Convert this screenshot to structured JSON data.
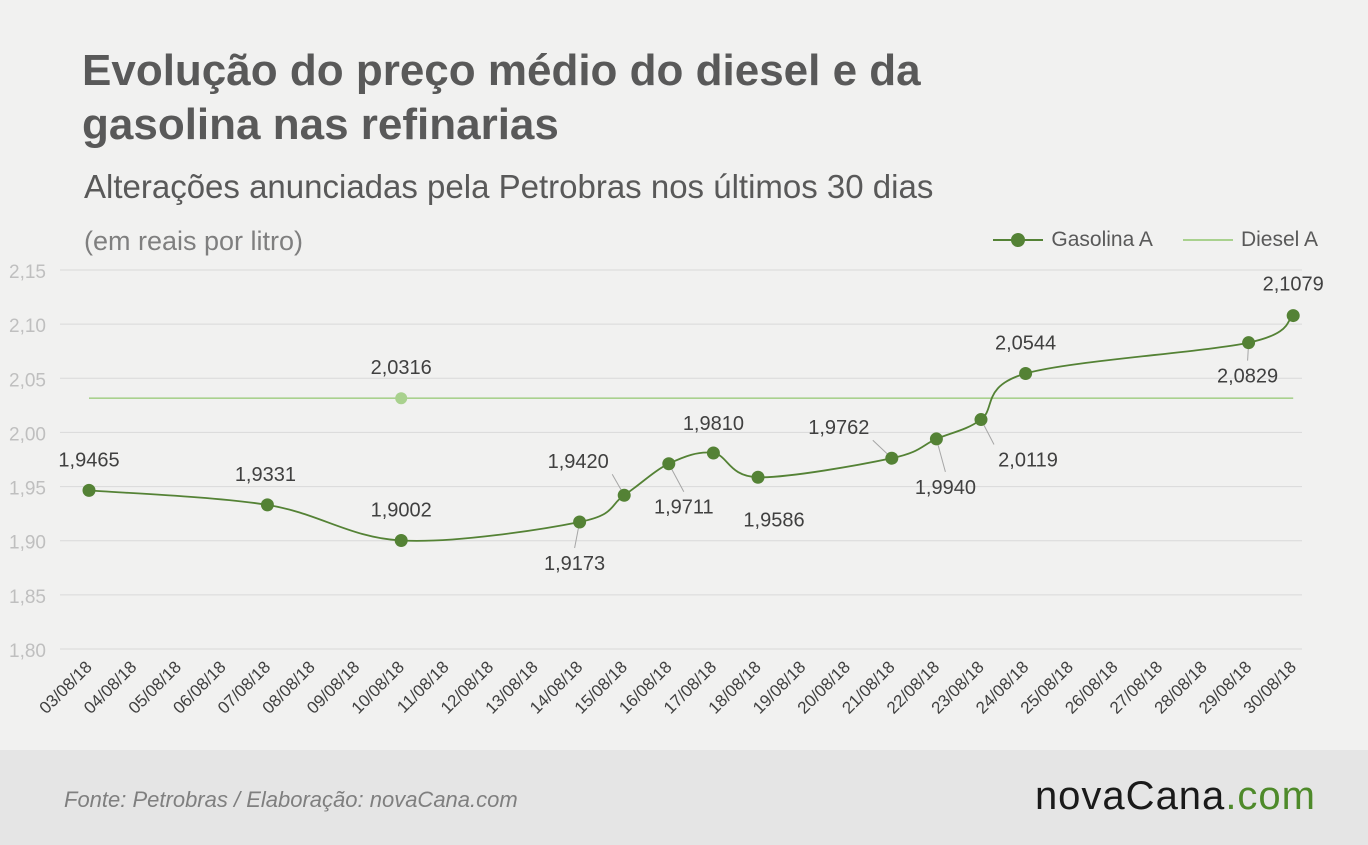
{
  "header": {
    "title": "Evolução do preço médio do diesel e da gasolina nas refinarias",
    "subtitle": "Alterações anunciadas pela Petrobras nos últimos 30 dias",
    "unit": "(em reais por litro)"
  },
  "legend": {
    "gasolina": "Gasolina A",
    "diesel": "Diesel A"
  },
  "footer": {
    "source": "Fonte:  Petrobras  / Elaboração:  novaCana.com",
    "brand_main": "novaCana",
    "brand_suffix": ".com"
  },
  "colors": {
    "gasolina": "#548235",
    "diesel": "#a9d18e",
    "background": "#f1f1f0",
    "footer_bg": "#e5e5e5"
  },
  "chart_data": {
    "type": "line",
    "title": "Evolução do preço médio do diesel e da gasolina nas refinarias",
    "subtitle": "Alterações anunciadas pela Petrobras nos últimos 30 dias",
    "ylabel": "(em reais por litro)",
    "ylim": [
      1.8,
      2.15
    ],
    "ytick_step": 0.05,
    "yticks": [
      "1,80",
      "1,85",
      "1,90",
      "1,95",
      "2,00",
      "2,05",
      "2,10",
      "2,15"
    ],
    "grid": true,
    "legend_position": "top-right",
    "categories": [
      "03/08/18",
      "04/08/18",
      "05/08/18",
      "06/08/18",
      "07/08/18",
      "08/08/18",
      "09/08/18",
      "10/08/18",
      "11/08/18",
      "12/08/18",
      "13/08/18",
      "14/08/18",
      "15/08/18",
      "16/08/18",
      "17/08/18",
      "18/08/18",
      "19/08/18",
      "20/08/18",
      "21/08/18",
      "22/08/18",
      "23/08/18",
      "24/08/18",
      "25/08/18",
      "26/08/18",
      "27/08/18",
      "28/08/18",
      "29/08/18",
      "30/08/18"
    ],
    "series": [
      {
        "name": "Gasolina A",
        "points": [
          {
            "x": "03/08/18",
            "y": 1.9465,
            "label": "1,9465"
          },
          {
            "x": "07/08/18",
            "y": 1.9331,
            "label": "1,9331"
          },
          {
            "x": "10/08/18",
            "y": 1.9002,
            "label": "1,9002"
          },
          {
            "x": "14/08/18",
            "y": 1.9173,
            "label": "1,9173"
          },
          {
            "x": "15/08/18",
            "y": 1.942,
            "label": "1,9420"
          },
          {
            "x": "16/08/18",
            "y": 1.9711,
            "label": "1,9711"
          },
          {
            "x": "17/08/18",
            "y": 1.981,
            "label": "1,9810"
          },
          {
            "x": "18/08/18",
            "y": 1.9586,
            "label": "1,9586"
          },
          {
            "x": "21/08/18",
            "y": 1.9762,
            "label": "1,9762"
          },
          {
            "x": "22/08/18",
            "y": 1.994,
            "label": "1,9940"
          },
          {
            "x": "23/08/18",
            "y": 2.0119,
            "label": "2,0119"
          },
          {
            "x": "24/08/18",
            "y": 2.0544,
            "label": "2,0544"
          },
          {
            "x": "29/08/18",
            "y": 2.0829,
            "label": "2,0829"
          },
          {
            "x": "30/08/18",
            "y": 2.1079,
            "label": "2,1079"
          }
        ]
      },
      {
        "name": "Diesel A",
        "points": [
          {
            "x": "03/08/18",
            "y": 2.0316
          },
          {
            "x": "10/08/18",
            "y": 2.0316,
            "label": "2,0316"
          },
          {
            "x": "30/08/18",
            "y": 2.0316
          }
        ]
      }
    ]
  }
}
